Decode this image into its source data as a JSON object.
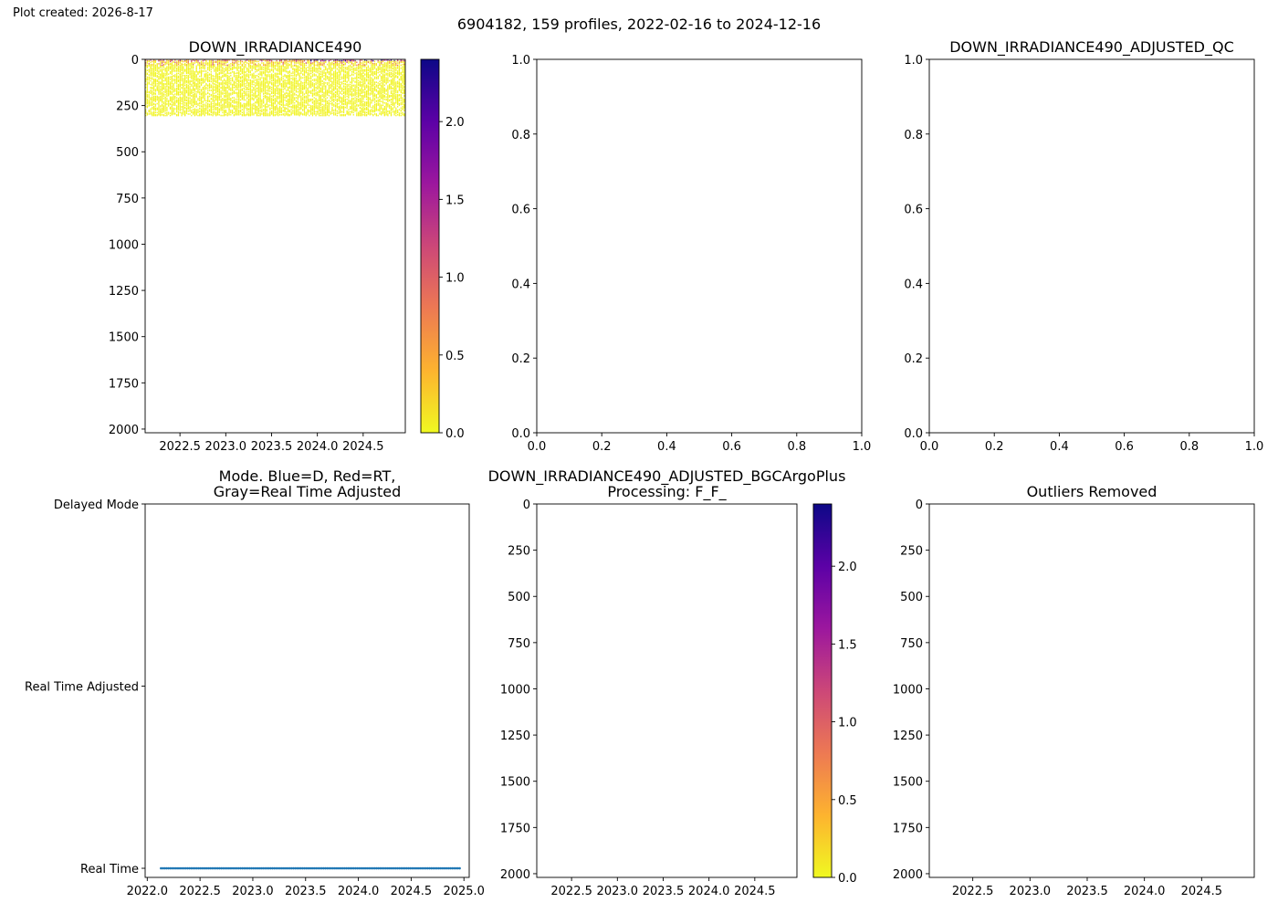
{
  "header": {
    "created": "Plot created: 2026-8-17",
    "suptitle": "6904182, 159 profiles, 2022-02-16 to 2024-12-16"
  },
  "colors": {
    "colormap": [
      "#f0f921",
      "#fdb32f",
      "#ed7953",
      "#cc4778",
      "#9c179e",
      "#5c01a6",
      "#0d0887"
    ],
    "mode_points": "#1f77b4",
    "axes": "#000000"
  },
  "chart_data": [
    {
      "id": "p1",
      "type": "heatmap",
      "title": "DOWN_IRRADIANCE490",
      "x_range": [
        2022.12,
        2024.96
      ],
      "y_range": [
        2020,
        0
      ],
      "y_inverted": true,
      "x_ticks": [
        2022.5,
        2023.0,
        2023.5,
        2024.0,
        2024.5
      ],
      "x_tick_labels": [
        "2022.5",
        "2023.0",
        "2023.5",
        "2024.0",
        "2024.5"
      ],
      "y_ticks": [
        0,
        250,
        500,
        750,
        1000,
        1250,
        1500,
        1750,
        2000
      ],
      "y_tick_labels": [
        "0",
        "250",
        "500",
        "750",
        "1000",
        "1250",
        "1500",
        "1750",
        "2000"
      ],
      "data_depth_range": [
        0,
        300
      ],
      "colorbar": {
        "range": [
          0,
          2.4
        ],
        "ticks": [
          0,
          0.5,
          1.0,
          1.5,
          2.0
        ],
        "tick_labels": [
          "0.0",
          "0.5",
          "1.0",
          "1.5",
          "2.0"
        ]
      }
    },
    {
      "id": "p2",
      "type": "scatter",
      "title": "",
      "x_range": [
        0,
        1
      ],
      "y_range": [
        0,
        1
      ],
      "x_ticks": [
        0,
        0.2,
        0.4,
        0.6,
        0.8,
        1.0
      ],
      "x_tick_labels": [
        "0.0",
        "0.2",
        "0.4",
        "0.6",
        "0.8",
        "1.0"
      ],
      "y_ticks": [
        0,
        0.2,
        0.4,
        0.6,
        0.8,
        1.0
      ],
      "y_tick_labels": [
        "0.0",
        "0.2",
        "0.4",
        "0.6",
        "0.8",
        "1.0"
      ]
    },
    {
      "id": "p3",
      "type": "scatter",
      "title": "DOWN_IRRADIANCE490_ADJUSTED_QC",
      "x_range": [
        0,
        1
      ],
      "y_range": [
        0,
        1
      ],
      "x_ticks": [
        0,
        0.2,
        0.4,
        0.6,
        0.8,
        1.0
      ],
      "x_tick_labels": [
        "0.0",
        "0.2",
        "0.4",
        "0.6",
        "0.8",
        "1.0"
      ],
      "y_ticks": [
        0,
        0.2,
        0.4,
        0.6,
        0.8,
        1.0
      ],
      "y_tick_labels": [
        "0.0",
        "0.2",
        "0.4",
        "0.6",
        "0.8",
        "1.0"
      ]
    },
    {
      "id": "p4",
      "type": "scatter",
      "title": [
        "Mode. Blue=D, Red=RT,",
        "Gray=Real Time Adjusted"
      ],
      "x_range": [
        2021.98,
        2025.05
      ],
      "y_range": [
        -0.05,
        2.0
      ],
      "x_ticks": [
        2022.0,
        2022.5,
        2023.0,
        2023.5,
        2024.0,
        2024.5,
        2025.0
      ],
      "x_tick_labels": [
        "2022.0",
        "2022.5",
        "2023.0",
        "2023.5",
        "2024.0",
        "2024.5",
        "2025.0"
      ],
      "y_ticks": [
        0,
        1,
        2
      ],
      "y_tick_labels": [
        "Real Time",
        "Real Time Adjusted",
        "Delayed Mode"
      ],
      "points": {
        "x_start": 2022.13,
        "x_end": 2024.96,
        "count": 159,
        "y": 0
      }
    },
    {
      "id": "p5",
      "type": "heatmap",
      "title": [
        "DOWN_IRRADIANCE490_ADJUSTED_BGCArgoPlus",
        "Processing: F_F_"
      ],
      "x_range": [
        2022.12,
        2024.96
      ],
      "y_range": [
        2020,
        0
      ],
      "y_inverted": true,
      "x_ticks": [
        2022.5,
        2023.0,
        2023.5,
        2024.0,
        2024.5
      ],
      "x_tick_labels": [
        "2022.5",
        "2023.0",
        "2023.5",
        "2024.0",
        "2024.5"
      ],
      "y_ticks": [
        0,
        250,
        500,
        750,
        1000,
        1250,
        1500,
        1750,
        2000
      ],
      "y_tick_labels": [
        "0",
        "250",
        "500",
        "750",
        "1000",
        "1250",
        "1500",
        "1750",
        "2000"
      ],
      "colorbar": {
        "range": [
          0,
          2.4
        ],
        "ticks": [
          0,
          0.5,
          1.0,
          1.5,
          2.0
        ],
        "tick_labels": [
          "0.0",
          "0.5",
          "1.0",
          "1.5",
          "2.0"
        ]
      }
    },
    {
      "id": "p6",
      "type": "heatmap",
      "title": "Outliers Removed",
      "x_range": [
        2022.12,
        2024.96
      ],
      "y_range": [
        2020,
        0
      ],
      "y_inverted": true,
      "x_ticks": [
        2022.5,
        2023.0,
        2023.5,
        2024.0,
        2024.5
      ],
      "x_tick_labels": [
        "2022.5",
        "2023.0",
        "2023.5",
        "2024.0",
        "2024.5"
      ],
      "y_ticks": [
        0,
        250,
        500,
        750,
        1000,
        1250,
        1500,
        1750,
        2000
      ],
      "y_tick_labels": [
        "0",
        "250",
        "500",
        "750",
        "1000",
        "1250",
        "1500",
        "1750",
        "2000"
      ]
    }
  ]
}
